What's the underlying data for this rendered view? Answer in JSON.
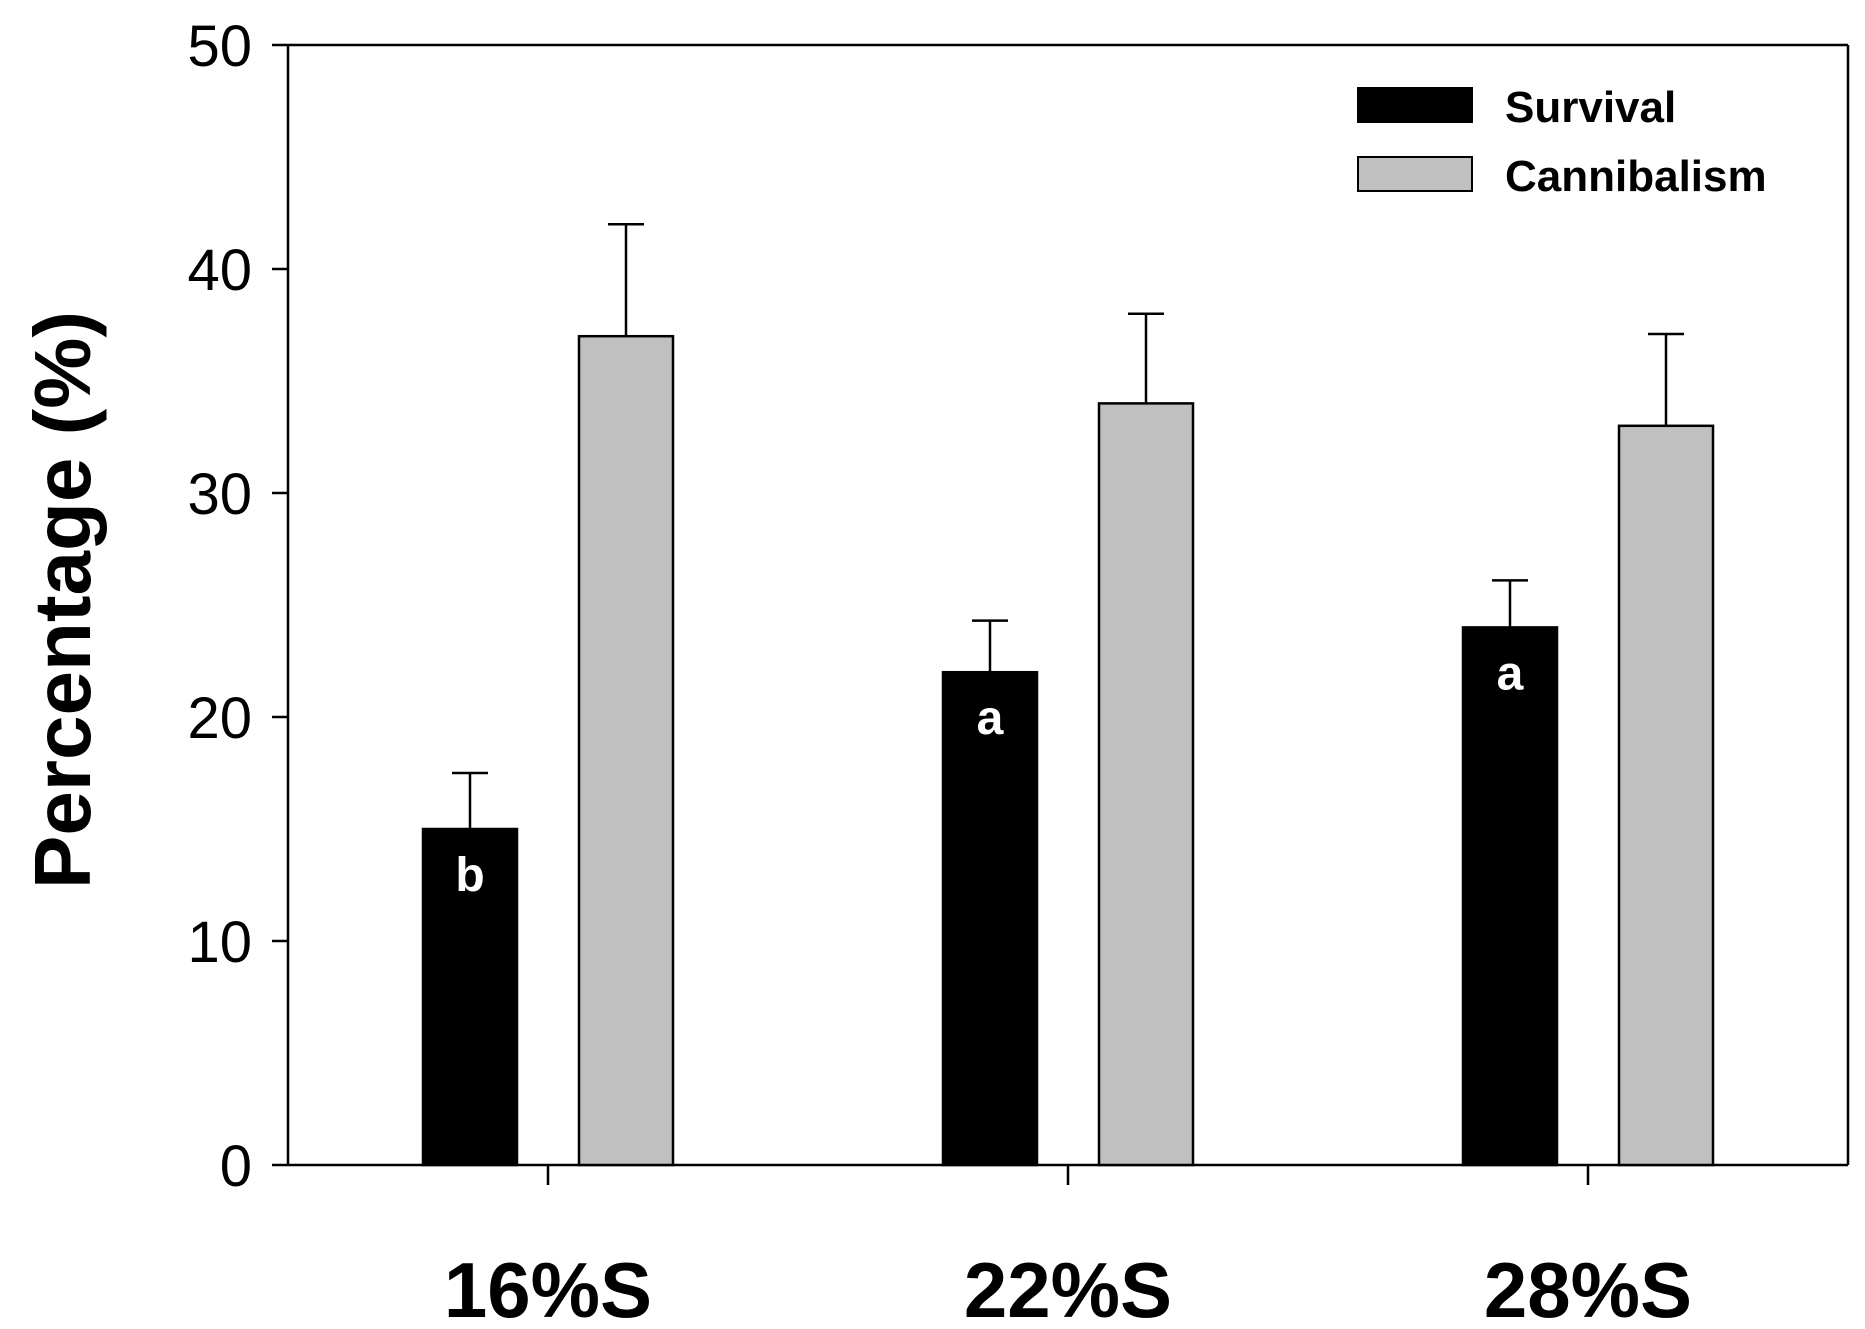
{
  "chart_data": {
    "type": "bar",
    "title": "",
    "xlabel": "",
    "ylabel": "Percentage (%)",
    "categories": [
      "16%S",
      "22%S",
      "28%S"
    ],
    "ylim": [
      0,
      50
    ],
    "yticks": [
      0,
      10,
      20,
      30,
      40,
      50
    ],
    "ytick_labels": [
      "0",
      "10",
      "20",
      "30",
      "40",
      "50"
    ],
    "legend_position": "top-right",
    "grid": false,
    "series": [
      {
        "name": "Survival",
        "color": "#000000",
        "values": [
          15,
          22,
          24
        ],
        "errors": [
          2.5,
          2.3,
          2.1
        ],
        "letters": [
          "b",
          "a",
          "a"
        ]
      },
      {
        "name": "Cannibalism",
        "color": "#c0c0c0",
        "values": [
          37,
          34,
          33
        ],
        "errors": [
          5,
          4,
          4.1
        ],
        "letters": [
          "",
          "",
          ""
        ]
      }
    ]
  }
}
